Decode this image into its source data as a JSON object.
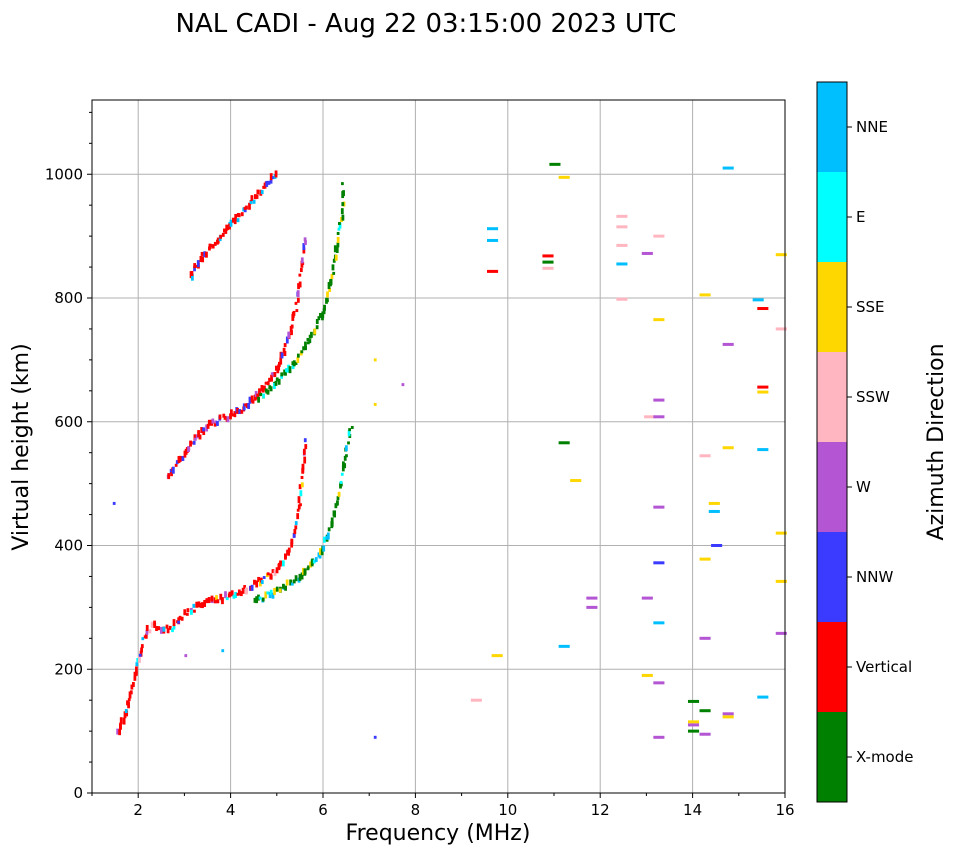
{
  "chart_data": {
    "type": "scatter",
    "title": "NAL CADI - Aug 22 03:15:00 2023 UTC",
    "xlabel": "Frequency (MHz)",
    "ylabel": "Virtual height (km)",
    "xlim": [
      1,
      16
    ],
    "ylim": [
      0,
      1120
    ],
    "xticks": [
      2,
      4,
      6,
      8,
      10,
      12,
      14,
      16
    ],
    "yticks": [
      0,
      200,
      400,
      600,
      800,
      1000
    ],
    "grid": true,
    "colorbar": {
      "title": "Azimuth Direction",
      "categories": [
        {
          "name": "X-mode",
          "color": "#008000"
        },
        {
          "name": "Vertical",
          "color": "#ff0000"
        },
        {
          "name": "NNW",
          "color": "#3b3bff"
        },
        {
          "name": "W",
          "color": "#b455d4"
        },
        {
          "name": "SSW",
          "color": "#ffb6c1"
        },
        {
          "name": "SSE",
          "color": "#ffd700"
        },
        {
          "name": "E",
          "color": "#00ffff"
        },
        {
          "name": "NNE",
          "color": "#00bfff"
        }
      ]
    },
    "traces": [
      {
        "name": "O-mode trace 1",
        "category": "Vertical",
        "mix": [
          "NNW",
          "W",
          "NNE",
          "E",
          "SSE",
          "SSW"
        ],
        "points": [
          [
            1.55,
            95
          ],
          [
            1.6,
            110
          ],
          [
            1.7,
            130
          ],
          [
            1.8,
            160
          ],
          [
            1.9,
            190
          ],
          [
            2.0,
            215
          ],
          [
            2.05,
            240
          ],
          [
            2.15,
            262
          ],
          [
            2.3,
            270
          ],
          [
            2.5,
            262
          ],
          [
            2.7,
            268
          ],
          [
            2.9,
            282
          ],
          [
            3.1,
            295
          ],
          [
            3.4,
            305
          ],
          [
            3.7,
            313
          ],
          [
            4.0,
            320
          ],
          [
            4.3,
            330
          ],
          [
            4.6,
            342
          ],
          [
            4.9,
            355
          ],
          [
            5.1,
            370
          ],
          [
            5.25,
            395
          ],
          [
            5.35,
            420
          ],
          [
            5.45,
            460
          ],
          [
            5.5,
            500
          ],
          [
            5.55,
            540
          ],
          [
            5.6,
            580
          ]
        ]
      },
      {
        "name": "X-mode trace 1",
        "category": "X-mode",
        "mix": [
          "E",
          "NNE",
          "SSE"
        ],
        "points": [
          [
            4.5,
            310
          ],
          [
            4.8,
            320
          ],
          [
            5.1,
            332
          ],
          [
            5.4,
            345
          ],
          [
            5.7,
            365
          ],
          [
            5.9,
            385
          ],
          [
            6.0,
            400
          ],
          [
            6.1,
            420
          ],
          [
            6.2,
            450
          ],
          [
            6.3,
            480
          ],
          [
            6.4,
            520
          ],
          [
            6.5,
            560
          ],
          [
            6.6,
            600
          ]
        ]
      },
      {
        "name": "O-mode trace 2",
        "category": "Vertical",
        "mix": [
          "NNW",
          "W"
        ],
        "points": [
          [
            2.6,
            510
          ],
          [
            2.9,
            540
          ],
          [
            3.2,
            570
          ],
          [
            3.5,
            595
          ],
          [
            3.8,
            605
          ],
          [
            4.1,
            615
          ],
          [
            4.4,
            630
          ],
          [
            4.7,
            655
          ],
          [
            5.0,
            690
          ],
          [
            5.2,
            730
          ],
          [
            5.35,
            770
          ],
          [
            5.45,
            810
          ],
          [
            5.5,
            850
          ],
          [
            5.55,
            880
          ],
          [
            5.6,
            900
          ]
        ]
      },
      {
        "name": "X-mode trace 2",
        "category": "X-mode",
        "mix": [
          "E",
          "SSE"
        ],
        "points": [
          [
            4.6,
            640
          ],
          [
            5.0,
            665
          ],
          [
            5.3,
            690
          ],
          [
            5.6,
            720
          ],
          [
            5.8,
            750
          ],
          [
            6.0,
            780
          ],
          [
            6.1,
            810
          ],
          [
            6.2,
            850
          ],
          [
            6.3,
            900
          ],
          [
            6.4,
            940
          ],
          [
            6.4,
            990
          ]
        ]
      },
      {
        "name": "O-mode trace 3",
        "category": "Vertical",
        "mix": [
          "NNW",
          "NNE"
        ],
        "points": [
          [
            3.1,
            835
          ],
          [
            3.4,
            870
          ],
          [
            3.7,
            895
          ],
          [
            4.0,
            920
          ],
          [
            4.3,
            945
          ],
          [
            4.6,
            970
          ],
          [
            4.8,
            990
          ],
          [
            5.0,
            1005
          ]
        ]
      }
    ],
    "isolated": [
      {
        "f": 1.45,
        "h": 468,
        "category": "NNW"
      },
      {
        "f": 9.55,
        "h": 843,
        "category": "Vertical"
      },
      {
        "f": 9.55,
        "h": 912,
        "category": "NNE"
      },
      {
        "f": 9.55,
        "h": 893,
        "category": "NNE"
      },
      {
        "f": 10.75,
        "h": 868,
        "category": "Vertical"
      },
      {
        "f": 10.75,
        "h": 858,
        "category": "X-mode"
      },
      {
        "f": 10.75,
        "h": 848,
        "category": "SSW"
      },
      {
        "f": 10.9,
        "h": 1016,
        "category": "X-mode"
      },
      {
        "f": 11.1,
        "h": 995,
        "category": "SSE"
      },
      {
        "f": 11.1,
        "h": 566,
        "category": "X-mode"
      },
      {
        "f": 11.35,
        "h": 505,
        "category": "SSE"
      },
      {
        "f": 11.1,
        "h": 237,
        "category": "NNE"
      },
      {
        "f": 11.7,
        "h": 315,
        "category": "W"
      },
      {
        "f": 11.7,
        "h": 300,
        "category": "W"
      },
      {
        "f": 12.35,
        "h": 932,
        "category": "SSW"
      },
      {
        "f": 12.35,
        "h": 915,
        "category": "SSW"
      },
      {
        "f": 12.35,
        "h": 885,
        "category": "SSW"
      },
      {
        "f": 12.35,
        "h": 855,
        "category": "NNE"
      },
      {
        "f": 12.35,
        "h": 798,
        "category": "SSW"
      },
      {
        "f": 12.9,
        "h": 872,
        "category": "W"
      },
      {
        "f": 13.15,
        "h": 900,
        "category": "SSW"
      },
      {
        "f": 13.15,
        "h": 765,
        "category": "SSE"
      },
      {
        "f": 13.15,
        "h": 635,
        "category": "W"
      },
      {
        "f": 12.95,
        "h": 608,
        "category": "SSW"
      },
      {
        "f": 13.15,
        "h": 608,
        "category": "W"
      },
      {
        "f": 13.15,
        "h": 462,
        "category": "W"
      },
      {
        "f": 13.15,
        "h": 372,
        "category": "NNW"
      },
      {
        "f": 12.9,
        "h": 315,
        "category": "W"
      },
      {
        "f": 13.15,
        "h": 275,
        "category": "NNE"
      },
      {
        "f": 12.9,
        "h": 190,
        "category": "SSE"
      },
      {
        "f": 13.15,
        "h": 178,
        "category": "W"
      },
      {
        "f": 13.15,
        "h": 90,
        "category": "W"
      },
      {
        "f": 14.15,
        "h": 805,
        "category": "SSE"
      },
      {
        "f": 14.15,
        "h": 545,
        "category": "SSW"
      },
      {
        "f": 14.15,
        "h": 378,
        "category": "SSE"
      },
      {
        "f": 14.15,
        "h": 250,
        "category": "W"
      },
      {
        "f": 14.35,
        "h": 468,
        "category": "SSE"
      },
      {
        "f": 14.35,
        "h": 455,
        "category": "NNE"
      },
      {
        "f": 14.4,
        "h": 400,
        "category": "NNW"
      },
      {
        "f": 14.65,
        "h": 1010,
        "category": "NNE"
      },
      {
        "f": 14.65,
        "h": 725,
        "category": "W"
      },
      {
        "f": 14.65,
        "h": 558,
        "category": "SSE"
      },
      {
        "f": 13.9,
        "h": 148,
        "category": "X-mode"
      },
      {
        "f": 14.15,
        "h": 133,
        "category": "X-mode"
      },
      {
        "f": 13.9,
        "h": 115,
        "category": "SSE"
      },
      {
        "f": 13.9,
        "h": 110,
        "category": "W"
      },
      {
        "f": 13.9,
        "h": 100,
        "category": "X-mode"
      },
      {
        "f": 14.15,
        "h": 95,
        "category": "W"
      },
      {
        "f": 14.65,
        "h": 128,
        "category": "W"
      },
      {
        "f": 14.65,
        "h": 123,
        "category": "SSE"
      },
      {
        "f": 15.3,
        "h": 797,
        "category": "NNE"
      },
      {
        "f": 15.4,
        "h": 783,
        "category": "Vertical"
      },
      {
        "f": 15.4,
        "h": 656,
        "category": "Vertical"
      },
      {
        "f": 15.4,
        "h": 648,
        "category": "SSE"
      },
      {
        "f": 15.4,
        "h": 555,
        "category": "NNE"
      },
      {
        "f": 15.4,
        "h": 155,
        "category": "NNE"
      },
      {
        "f": 15.8,
        "h": 870,
        "category": "SSE"
      },
      {
        "f": 15.8,
        "h": 750,
        "category": "SSW"
      },
      {
        "f": 15.8,
        "h": 420,
        "category": "SSE"
      },
      {
        "f": 15.8,
        "h": 342,
        "category": "SSE"
      },
      {
        "f": 15.8,
        "h": 258,
        "category": "W"
      },
      {
        "f": 9.2,
        "h": 150,
        "category": "SSW"
      },
      {
        "f": 9.65,
        "h": 222,
        "category": "SSE"
      },
      {
        "f": 7.1,
        "h": 90,
        "category": "NNW"
      },
      {
        "f": 7.7,
        "h": 660,
        "category": "W"
      },
      {
        "f": 7.1,
        "h": 628,
        "category": "SSE"
      },
      {
        "f": 7.1,
        "h": 700,
        "category": "SSE"
      },
      {
        "f": 3.8,
        "h": 230,
        "category": "NNE"
      },
      {
        "f": 3.0,
        "h": 222,
        "category": "W"
      }
    ]
  }
}
